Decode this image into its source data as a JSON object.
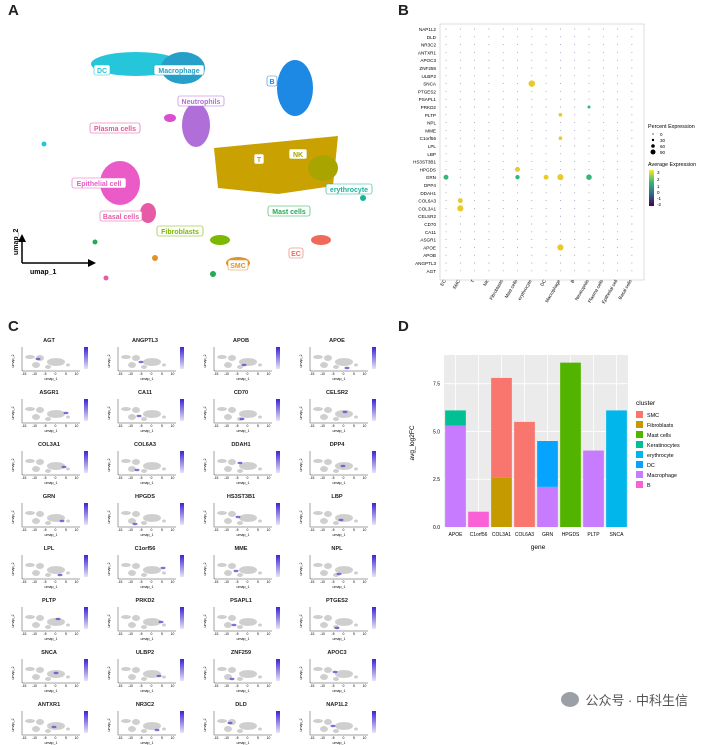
{
  "panels": {
    "a": "A",
    "b": "B",
    "c": "C",
    "d": "D"
  },
  "umap": {
    "xlabel": "umap_1",
    "ylabel": "umap_2",
    "clusters": [
      {
        "label": "DC",
        "color": "#26c6da"
      },
      {
        "label": "Macrophage",
        "color": "#26a0c8"
      },
      {
        "label": "B",
        "color": "#1e88e5"
      },
      {
        "label": "Neutrophils",
        "color": "#b06fd8"
      },
      {
        "label": "Plasma cells",
        "color": "#e8559a"
      },
      {
        "label": "T",
        "color": "#c9a100"
      },
      {
        "label": "NK",
        "color": "#a9a400"
      },
      {
        "label": "erythrocyte",
        "color": "#19b39a"
      },
      {
        "label": "Epithelial cell",
        "color": "#ea5bc8"
      },
      {
        "label": "Basal cells",
        "color": "#e65aa6"
      },
      {
        "label": "Mast cells",
        "color": "#22aa55"
      },
      {
        "label": "Fibroblasts",
        "color": "#7cb800"
      },
      {
        "label": "SMC",
        "color": "#e0932a"
      },
      {
        "label": "EC",
        "color": "#ef6a5a"
      }
    ]
  },
  "dotplot": {
    "genes": [
      "NAP1L2",
      "DLD",
      "NR3C2",
      "ANTXR1",
      "APOC3",
      "ZNF259",
      "ULBP2",
      "SNCA",
      "PTGES2",
      "PSAPL1",
      "PRKD2",
      "PLTP",
      "NPL",
      "MME",
      "C1orf56",
      "LPL",
      "LBP",
      "HS3ST3B1",
      "HPGDS",
      "GRN",
      "DPP4",
      "DDAH1",
      "COL6A3",
      "COL3A1",
      "CELSR2",
      "CD70",
      "CA11",
      "ASGR1",
      "APOE",
      "APOB",
      "ANGPTL3",
      "AGT"
    ],
    "cell_types": [
      "EC",
      "SMC",
      "T",
      "NK",
      "Fibroblasts",
      "Mast cells",
      "erythrocyte",
      "DC",
      "Macrophage",
      "B",
      "Neutrophils",
      "Plasma cells",
      "Epithelial cell",
      "Basal cells"
    ],
    "percent_title": "Percent Expression",
    "percent_ticks": [
      "0",
      "30",
      "60",
      "90"
    ],
    "avg_title": "Average Expression",
    "avg_ticks": [
      "3",
      "2",
      "1",
      "0",
      "-1",
      "-2"
    ],
    "dots": [
      {
        "gene": "SNCA",
        "cell": "erythrocyte",
        "pct": 85,
        "avg": 3
      },
      {
        "gene": "HPGDS",
        "cell": "Mast cells",
        "pct": 60,
        "avg": 3
      },
      {
        "gene": "GRN",
        "cell": "EC",
        "pct": 60,
        "avg": 1
      },
      {
        "gene": "GRN",
        "cell": "Macrophage",
        "pct": 80,
        "avg": 2.5
      },
      {
        "gene": "GRN",
        "cell": "DC",
        "pct": 60,
        "avg": 2.5
      },
      {
        "gene": "GRN",
        "cell": "Neutrophils",
        "pct": 70,
        "avg": 1
      },
      {
        "gene": "GRN",
        "cell": "Mast cells",
        "pct": 50,
        "avg": 1
      },
      {
        "gene": "COL3A1",
        "cell": "SMC",
        "pct": 80,
        "avg": 3
      },
      {
        "gene": "COL6A3",
        "cell": "SMC",
        "pct": 60,
        "avg": 3
      },
      {
        "gene": "APOE",
        "cell": "Macrophage",
        "pct": 80,
        "avg": 3
      },
      {
        "gene": "C1orf56",
        "cell": "Macrophage",
        "pct": 40,
        "avg": 2.5
      },
      {
        "gene": "PLTP",
        "cell": "Macrophage",
        "pct": 40,
        "avg": 2.5
      },
      {
        "gene": "PRKD2",
        "cell": "Neutrophils",
        "pct": 30,
        "avg": 1
      }
    ]
  },
  "feature_plots": {
    "axis_x": "umap_1",
    "axis_y": "umap_2",
    "x_ticks": [
      "-15",
      "-10",
      "-5",
      "0",
      "5",
      "10"
    ],
    "genes": [
      "AGT",
      "ANGPTL3",
      "APOB",
      "APOE",
      "ASGR1",
      "CA11",
      "CD70",
      "CELSR2",
      "COL3A1",
      "COL6A3",
      "DDAH1",
      "DPP4",
      "GRN",
      "HPGDS",
      "HS3ST3B1",
      "LBP",
      "LPL",
      "C1orf56",
      "MME",
      "NPL",
      "PLTP",
      "PRKD2",
      "PSAPL1",
      "PTGES2",
      "SNCA",
      "ULBP2",
      "ZNF259",
      "APOC3",
      "ANTXR1",
      "NR3C2",
      "DLD",
      "NAP1L2"
    ]
  },
  "chart_data": {
    "type": "bar",
    "title": "",
    "xlabel": "gene",
    "ylabel": "avg_log2FC",
    "ylim": [
      0,
      9
    ],
    "y_ticks": [
      "0.0",
      "2.5",
      "5.0",
      "7.5"
    ],
    "categories": [
      "APOE",
      "C1orf56",
      "COL3A1",
      "COL6A3",
      "GRN",
      "HPGDS",
      "PLTP",
      "SNCA"
    ],
    "legend_title": "cluster",
    "legend_position": "right",
    "series": [
      {
        "name": "SMC",
        "color": "#f8766d",
        "values": [
          0,
          0,
          5.2,
          5.5,
          0,
          0,
          0,
          0
        ]
      },
      {
        "name": "Fibroblasts",
        "color": "#c49a00",
        "values": [
          0,
          0,
          2.6,
          0,
          0,
          0,
          0,
          0
        ]
      },
      {
        "name": "Mast cells",
        "color": "#53b400",
        "values": [
          0,
          0,
          0,
          0,
          0,
          8.6,
          0,
          0
        ]
      },
      {
        "name": "Keratinocytes",
        "color": "#00c094",
        "values": [
          0.8,
          0,
          0,
          0,
          0,
          0,
          0,
          0
        ]
      },
      {
        "name": "erythrocyte",
        "color": "#00b6eb",
        "values": [
          0,
          0,
          0,
          0,
          0,
          0,
          0,
          6.1
        ]
      },
      {
        "name": "DC",
        "color": "#06a4ff",
        "values": [
          0,
          0,
          0,
          0,
          2.4,
          0,
          0,
          0
        ]
      },
      {
        "name": "Macrophage",
        "color": "#c77cff",
        "values": [
          5.3,
          0,
          0,
          0,
          2.1,
          0,
          4.0,
          0
        ]
      },
      {
        "name": "B",
        "color": "#fb61d7",
        "values": [
          0,
          0.8,
          0,
          0,
          0,
          0,
          0,
          0
        ]
      }
    ]
  },
  "watermark": {
    "text": "公众号 · 中科生信"
  }
}
